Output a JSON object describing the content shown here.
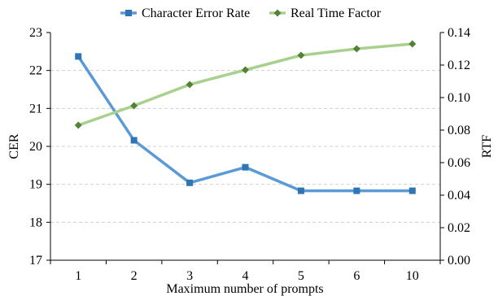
{
  "chart_data": {
    "type": "line",
    "categories": [
      "1",
      "2",
      "3",
      "4",
      "5",
      "6",
      "10"
    ],
    "series": [
      {
        "name": "Character Error Rate",
        "axis": "left",
        "color": "#5b9bd5",
        "marker_color": "#2e75b6",
        "marker": "square",
        "values": [
          22.37,
          20.16,
          19.04,
          19.45,
          18.83,
          18.83,
          18.83
        ]
      },
      {
        "name": "Real Time Factor",
        "axis": "right",
        "color": "#a9d18e",
        "marker_color": "#548235",
        "marker": "diamond",
        "values": [
          0.083,
          0.095,
          0.108,
          0.117,
          0.126,
          0.13,
          0.133
        ]
      }
    ],
    "xlabel": "Maximum number of prompts",
    "ylabel_left": "CER",
    "ylabel_right": "RTF",
    "ylim_left": [
      17,
      23
    ],
    "yticks_left": [
      "17",
      "18",
      "19",
      "20",
      "21",
      "22",
      "23"
    ],
    "ylim_right": [
      0,
      0.14
    ],
    "yticks_right": [
      "0.00",
      "0.02",
      "0.04",
      "0.06",
      "0.08",
      "0.10",
      "0.12",
      "0.14"
    ],
    "grid": "horizontal-dashed",
    "legend_position": "top-center",
    "grid_color": "#d0d0d0",
    "axis_color": "#000000"
  }
}
